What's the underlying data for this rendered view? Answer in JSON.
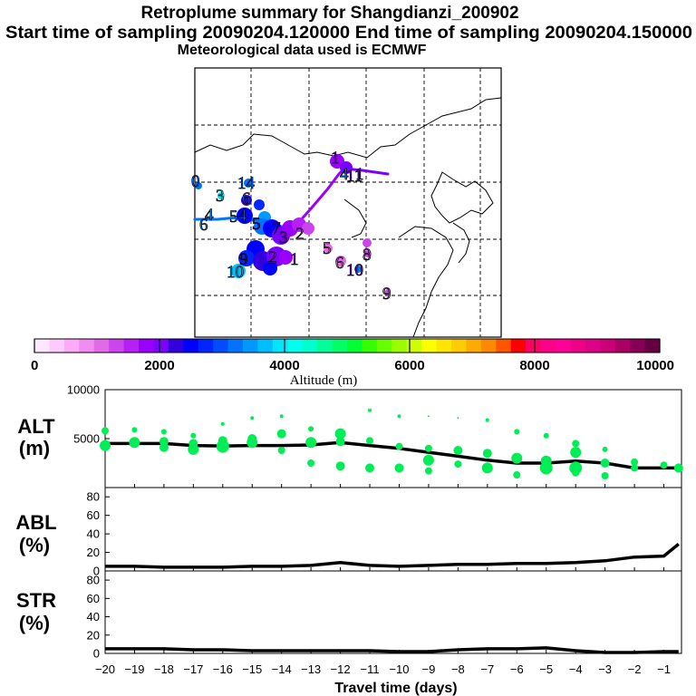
{
  "title": {
    "line1": "Retroplume summary for Shangdianzi_200902",
    "line2": "Start time of sampling 20090204.120000     End time of sampling 20090204.150000",
    "line3": "Meteorological data used is ECMWF"
  },
  "colorbar": {
    "label": "Altitude (m)",
    "ticks": [
      "0",
      "2000",
      "4000",
      "6000",
      "8000",
      "10000"
    ],
    "colors": [
      "#ffe8ff",
      "#ffcaff",
      "#ffaaf8",
      "#f28cf2",
      "#e26ae6",
      "#cc44ee",
      "#b71ff7",
      "#9a00ff",
      "#7a00ff",
      "#3300dd",
      "#0000ff",
      "#0026ff",
      "#004cff",
      "#0073ff",
      "#0099ff",
      "#00bfff",
      "#00e6ff",
      "#00ffee",
      "#00ffcc",
      "#00ff99",
      "#00ff66",
      "#00ff33",
      "#33ff00",
      "#66ff00",
      "#99ff00",
      "#ccff00",
      "#ffff00",
      "#ffe600",
      "#ffcc00",
      "#ffaa00",
      "#ff8800",
      "#ff5500",
      "#ff0000",
      "#ff0066",
      "#ff0088",
      "#ff0099",
      "#ee0088",
      "#dd0088",
      "#cc0077",
      "#aa0066",
      "#880055",
      "#660044"
    ]
  },
  "map": {
    "labels": [
      {
        "text": "1",
        "color": "#9a00ff"
      },
      {
        "text": "1",
        "color": "#9a00ff"
      },
      {
        "text": "1",
        "color": "#9a00ff"
      },
      {
        "text": "2",
        "color": "#9a00ff"
      },
      {
        "text": "2",
        "color": "#b71ff7"
      },
      {
        "text": "3",
        "color": "#9a00ff"
      },
      {
        "text": "3",
        "color": "#00e6ff"
      },
      {
        "text": "4",
        "color": "#0099ff"
      },
      {
        "text": "4",
        "color": "#0073ff"
      },
      {
        "text": "4",
        "color": "#0073ff"
      },
      {
        "text": "5",
        "color": "#e26ae6"
      },
      {
        "text": "5",
        "color": "#0099ff"
      },
      {
        "text": "5",
        "color": "#3300dd"
      },
      {
        "text": "6",
        "color": "#0099ff"
      },
      {
        "text": "6",
        "color": "#e26ae6"
      },
      {
        "text": "7",
        "color": "#3300dd"
      },
      {
        "text": "8",
        "color": "#cc44ee"
      },
      {
        "text": "9",
        "color": "#cc44ee"
      },
      {
        "text": "10",
        "color": "#00bfff"
      },
      {
        "text": "10",
        "color": "#9a00ff"
      },
      {
        "text": "11",
        "color": "#7a00ff"
      },
      {
        "text": "14",
        "color": "#0073ff"
      },
      {
        "text": "6",
        "color": "#0073ff"
      },
      {
        "text": "9",
        "color": "#3300dd"
      },
      {
        "text": "0",
        "color": "#0073ff"
      }
    ]
  },
  "chart_data": [
    {
      "type": "scatter",
      "panel_label": "ALT",
      "unit_label": "(m)",
      "ylim": [
        0,
        10000
      ],
      "yticks": [
        5000,
        10000
      ],
      "xlim": [
        -20,
        -0.4
      ],
      "series": [
        {
          "name": "mean altitude",
          "style": "line",
          "color": "#000000",
          "x": [
            -20,
            -19,
            -18,
            -17,
            -16,
            -15,
            -14,
            -13,
            -12,
            -11,
            -10,
            -9,
            -8,
            -7,
            -6,
            -5,
            -4,
            -3,
            -2,
            -1,
            -0.5
          ],
          "y": [
            4500,
            4500,
            4500,
            4300,
            4250,
            4300,
            4300,
            4350,
            4600,
            4300,
            4000,
            3600,
            3200,
            2800,
            2500,
            2500,
            2700,
            2500,
            2000,
            2000,
            2000
          ]
        },
        {
          "name": "plume clusters",
          "style": "points",
          "color": "#00ee55",
          "x": [
            -20,
            -20,
            -19,
            -19,
            -18,
            -18,
            -18,
            -17,
            -17,
            -17,
            -16,
            -16,
            -16,
            -15,
            -15,
            -15,
            -14,
            -14,
            -14,
            -13,
            -13,
            -13,
            -12,
            -12,
            -12,
            -11,
            -11,
            -11,
            -10,
            -10,
            -10,
            -9,
            -9,
            -9,
            -9,
            -8,
            -8,
            -8,
            -7,
            -7,
            -7,
            -6,
            -6,
            -6,
            -5,
            -5,
            -5,
            -4,
            -4,
            -4,
            -4,
            -3,
            -3,
            -3,
            -2,
            -2,
            -1,
            -0.5
          ],
          "y": [
            5800,
            4300,
            5900,
            4600,
            5700,
            4700,
            4100,
            5300,
            4500,
            3900,
            6500,
            4800,
            4200,
            7100,
            5000,
            4600,
            7300,
            5500,
            3800,
            6000,
            4600,
            2500,
            5500,
            4700,
            2200,
            7900,
            4800,
            2000,
            7300,
            4200,
            2000,
            7300,
            4000,
            2800,
            1700,
            7100,
            3800,
            2400,
            6900,
            3500,
            2000,
            5700,
            3000,
            1300,
            5300,
            2700,
            2000,
            4500,
            3600,
            2000,
            1500,
            3900,
            2500,
            1200,
            2600,
            2000,
            2300,
            2000
          ],
          "size": [
            4,
            6,
            3,
            6,
            3,
            5,
            5,
            3,
            5,
            6,
            2,
            5,
            7,
            2,
            5,
            6,
            2,
            5,
            4,
            3,
            6,
            4,
            6,
            5,
            5,
            2,
            4,
            5,
            2,
            4,
            5,
            1,
            4,
            6,
            4,
            1,
            5,
            4,
            2,
            5,
            6,
            3,
            6,
            4,
            3,
            6,
            7,
            4,
            6,
            7,
            4,
            3,
            5,
            4,
            4,
            4,
            4,
            5
          ]
        }
      ]
    },
    {
      "type": "line",
      "panel_label": "ABL",
      "unit_label": "(%)",
      "ylim": [
        0,
        90
      ],
      "yticks": [
        0,
        20,
        40,
        60,
        80
      ],
      "xlim": [
        -20,
        -0.4
      ],
      "series": [
        {
          "name": "ABL fraction",
          "color": "#000000",
          "x": [
            -20,
            -19,
            -18,
            -17,
            -16,
            -15,
            -14,
            -13,
            -12,
            -11,
            -10,
            -9,
            -8,
            -7,
            -6,
            -5,
            -4,
            -3,
            -2,
            -1,
            -0.5
          ],
          "y": [
            5,
            5,
            4,
            4,
            4,
            5,
            5,
            6,
            9,
            6,
            5,
            6,
            7,
            7,
            8,
            8,
            9,
            11,
            15,
            16,
            29
          ]
        }
      ]
    },
    {
      "type": "line",
      "panel_label": "STR",
      "unit_label": "(%)",
      "ylim": [
        0,
        90
      ],
      "yticks": [
        0,
        20,
        40,
        60,
        80
      ],
      "xlim": [
        -20,
        -0.4
      ],
      "xlabel": "Travel time (days)",
      "xticks": [
        -20,
        -19,
        -18,
        -17,
        -16,
        -15,
        -14,
        -13,
        -12,
        -11,
        -10,
        -9,
        -8,
        -7,
        -6,
        -5,
        -4,
        -3,
        -2,
        -1
      ],
      "series": [
        {
          "name": "STR fraction",
          "color": "#000000",
          "x": [
            -20,
            -19,
            -18,
            -17,
            -16,
            -15,
            -14,
            -13,
            -12,
            -11,
            -10,
            -9,
            -8,
            -7,
            -6,
            -5,
            -4,
            -3,
            -2,
            -1,
            -0.5
          ],
          "y": [
            5,
            5,
            5,
            4,
            4,
            3,
            3,
            3,
            3,
            3,
            2,
            2,
            4,
            5,
            5,
            6,
            3,
            1,
            1,
            2,
            2
          ]
        }
      ]
    }
  ]
}
